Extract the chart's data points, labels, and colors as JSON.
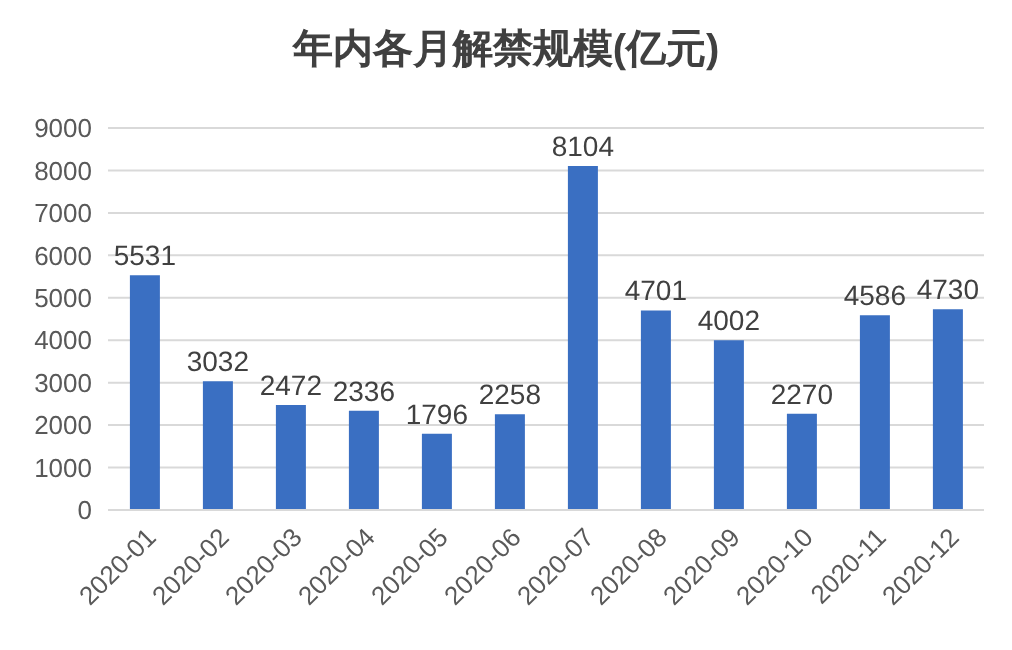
{
  "chart_data": {
    "type": "bar",
    "title": "年内各月解禁规模(亿元)",
    "categories": [
      "2020-01",
      "2020-02",
      "2020-03",
      "2020-04",
      "2020-05",
      "2020-06",
      "2020-07",
      "2020-08",
      "2020-09",
      "2020-10",
      "2020-11",
      "2020-12"
    ],
    "values": [
      5531,
      3032,
      2472,
      2336,
      1796,
      2258,
      8104,
      4701,
      4002,
      2270,
      4586,
      4730
    ],
    "color": "#3a6fc2",
    "ylim": [
      0,
      9000
    ],
    "yticks": [
      0,
      1000,
      2000,
      3000,
      4000,
      5000,
      6000,
      7000,
      8000,
      9000
    ],
    "grid": "y",
    "data_labels": true
  }
}
